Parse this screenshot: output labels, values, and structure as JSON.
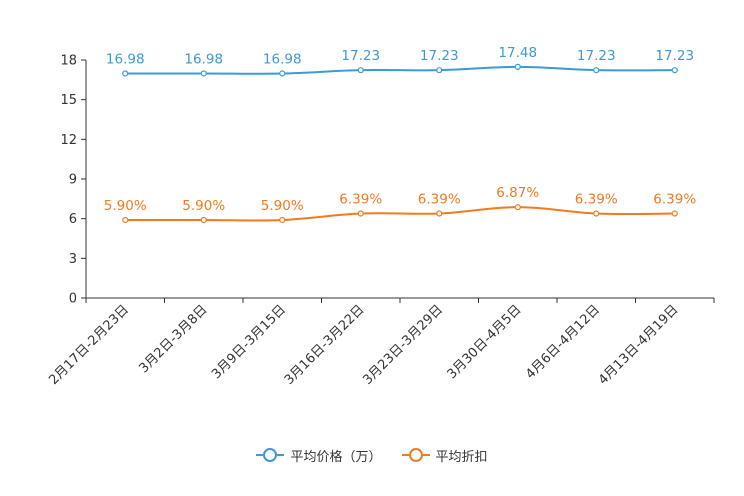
{
  "chart_data": {
    "type": "line",
    "categories": [
      "2月17日-2月23日",
      "3月2日-3月8日",
      "3月9日-3月15日",
      "3月16日-3月22日",
      "3月23日-3月29日",
      "3月30日-4月5日",
      "4月6日-4月12日",
      "4月13日-4月19日"
    ],
    "series": [
      {
        "name": "平均价格（万）",
        "color": "#3c9ad6",
        "values": [
          16.98,
          16.98,
          16.98,
          17.23,
          17.23,
          17.48,
          17.23,
          17.23
        ],
        "labels": [
          "16.98",
          "16.98",
          "16.98",
          "17.23",
          "17.23",
          "17.48",
          "17.23",
          "17.23"
        ]
      },
      {
        "name": "平均折扣",
        "color": "#f27a1f",
        "values": [
          5.9,
          5.9,
          5.9,
          6.39,
          6.39,
          6.87,
          6.39,
          6.39
        ],
        "labels": [
          "5.90%",
          "5.90%",
          "5.90%",
          "6.39%",
          "6.39%",
          "6.87%",
          "6.39%",
          "6.39%"
        ]
      }
    ],
    "yticks": [
      "0",
      "3",
      "6",
      "9",
      "12",
      "15",
      "18"
    ],
    "ylim": [
      0,
      18
    ],
    "title": "",
    "xlabel": "",
    "ylabel": "",
    "legend_position": "bottom-center"
  }
}
